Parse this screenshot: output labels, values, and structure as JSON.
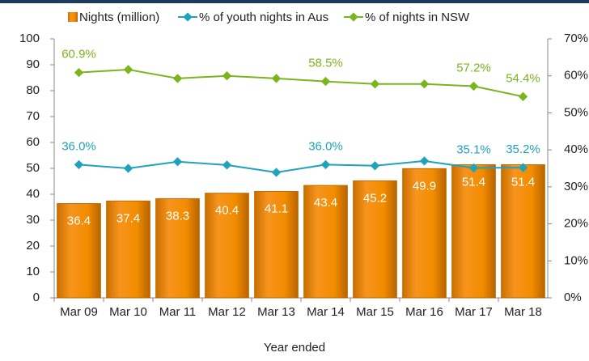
{
  "chart_data": {
    "type": "bar_line",
    "categories": [
      "Mar 09",
      "Mar 10",
      "Mar 11",
      "Mar 12",
      "Mar 13",
      "Mar 14",
      "Mar 15",
      "Mar 16",
      "Mar 17",
      "Mar 18"
    ],
    "xlabel": "Year ended",
    "series": [
      {
        "name": "Nights (million)",
        "type": "bar",
        "color": "#f28c00",
        "values": [
          36.4,
          37.4,
          38.3,
          40.4,
          41.1,
          43.4,
          45.2,
          49.9,
          51.4,
          51.4
        ]
      },
      {
        "name": "% of youth nights in Aus",
        "type": "line",
        "axis": "y2",
        "color": "#1fa3bd",
        "values": [
          36.0,
          35.0,
          36.8,
          35.9,
          33.9,
          36.0,
          35.7,
          37.0,
          35.1,
          35.2
        ],
        "value_labels": [
          "36.0%",
          null,
          null,
          null,
          null,
          "36.0%",
          null,
          null,
          "35.1%",
          "35.2%"
        ]
      },
      {
        "name": "% of nights in NSW",
        "type": "line",
        "axis": "y2",
        "color": "#7ab51d",
        "values": [
          60.9,
          61.7,
          59.3,
          60.0,
          59.3,
          58.5,
          57.8,
          57.8,
          57.2,
          54.4
        ],
        "value_labels": [
          "60.9%",
          null,
          null,
          null,
          null,
          "58.5%",
          null,
          null,
          "57.2%",
          "54.4%"
        ]
      }
    ],
    "ylim": [
      0,
      100
    ],
    "yticks": [
      0,
      10,
      20,
      30,
      40,
      50,
      60,
      70,
      80,
      90,
      100
    ],
    "y2lim": [
      0,
      70
    ],
    "y2ticks": [
      {
        "value": 0,
        "label": "0%"
      },
      {
        "value": 10,
        "label": "10%"
      },
      {
        "value": 20,
        "label": "20%"
      },
      {
        "value": 30,
        "label": "30%"
      },
      {
        "value": 40,
        "label": "40%"
      },
      {
        "value": 50,
        "label": "50%"
      },
      {
        "value": 60,
        "label": "60%"
      },
      {
        "value": 70,
        "label": "70%"
      }
    ],
    "legend": "top",
    "grid": false
  }
}
